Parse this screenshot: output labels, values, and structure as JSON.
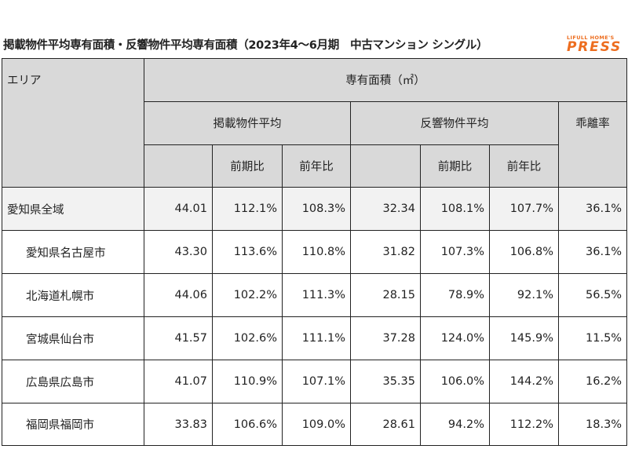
{
  "title": "掲載物件平均専有面積・反響物件平均専有面積（2023年4〜6月期　中古マンション シングル）",
  "logo": {
    "top": "LIFULL HOME'S",
    "bottom": "PRESS"
  },
  "colors": {
    "header_bg": "#d9d9d9",
    "total_row_bg": "#f2f2f2",
    "logo": "#ed6d1f"
  },
  "table": {
    "area_header": "エリア",
    "unit_header": "専有面積（㎡）",
    "listing_header": "掲載物件平均",
    "response_header": "反響物件平均",
    "divergence_header": "乖離率",
    "qoq_header": "前期比",
    "yoy_header": "前年比",
    "rows": [
      {
        "area": "愛知県全域",
        "listing": "44.01",
        "listing_qoq": "112.1%",
        "listing_yoy": "108.3%",
        "response": "32.34",
        "response_qoq": "108.1%",
        "response_yoy": "107.7%",
        "divergence": "36.1%"
      },
      {
        "area": "愛知県名古屋市",
        "listing": "43.30",
        "listing_qoq": "113.6%",
        "listing_yoy": "110.8%",
        "response": "31.82",
        "response_qoq": "107.3%",
        "response_yoy": "106.8%",
        "divergence": "36.1%"
      },
      {
        "area": "北海道札幌市",
        "listing": "44.06",
        "listing_qoq": "102.2%",
        "listing_yoy": "111.3%",
        "response": "28.15",
        "response_qoq": "78.9%",
        "response_yoy": "92.1%",
        "divergence": "56.5%"
      },
      {
        "area": "宮城県仙台市",
        "listing": "41.57",
        "listing_qoq": "102.6%",
        "listing_yoy": "111.1%",
        "response": "37.28",
        "response_qoq": "124.0%",
        "response_yoy": "145.9%",
        "divergence": "11.5%"
      },
      {
        "area": "広島県広島市",
        "listing": "41.07",
        "listing_qoq": "110.9%",
        "listing_yoy": "107.1%",
        "response": "35.35",
        "response_qoq": "106.0%",
        "response_yoy": "144.2%",
        "divergence": "16.2%"
      },
      {
        "area": "福岡県福岡市",
        "listing": "33.83",
        "listing_qoq": "106.6%",
        "listing_yoy": "109.0%",
        "response": "28.61",
        "response_qoq": "94.2%",
        "response_yoy": "112.2%",
        "divergence": "18.3%"
      }
    ]
  }
}
